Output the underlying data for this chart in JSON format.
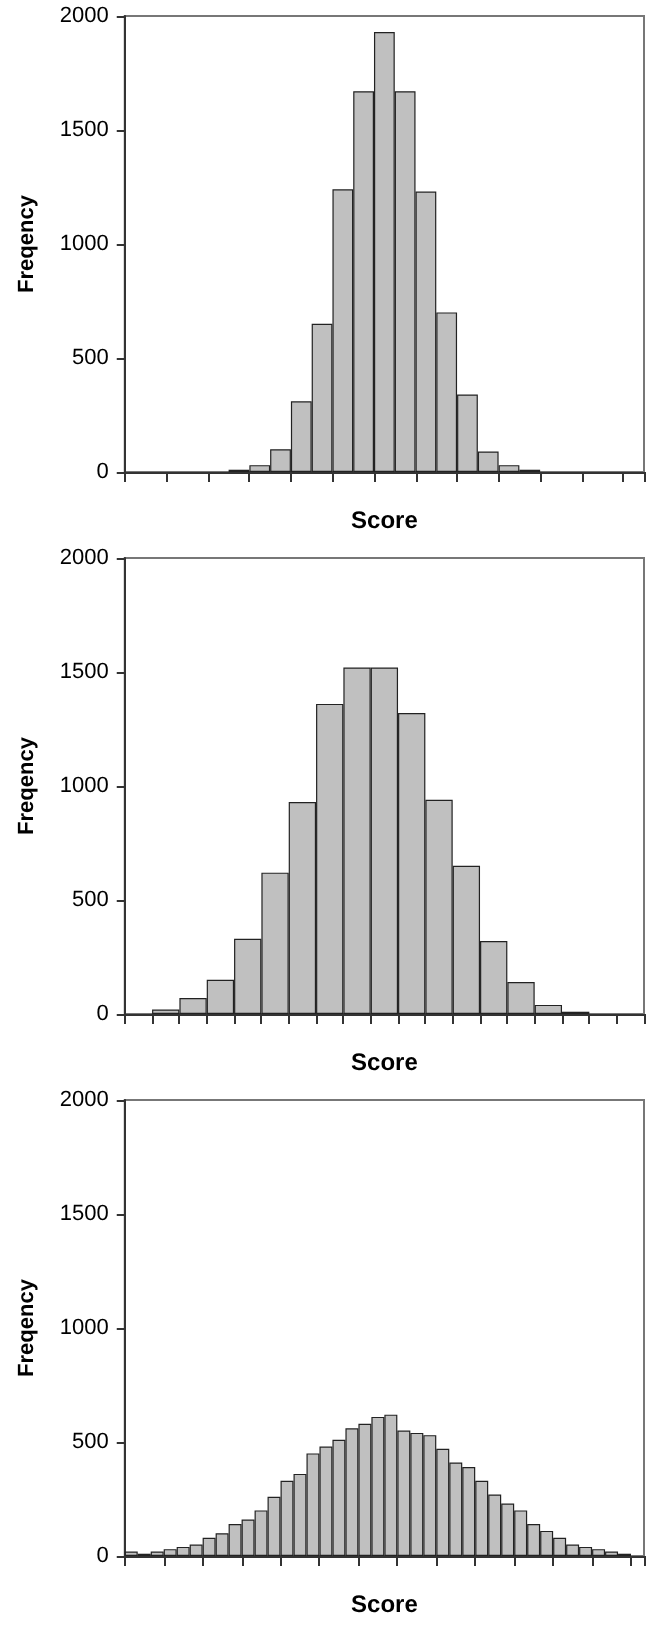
{
  "chart_data": [
    {
      "type": "bar",
      "xlabel": "Score",
      "ylabel": "Freqency",
      "categories": [
        null,
        null,
        null,
        null,
        null,
        null,
        null,
        null,
        null,
        null,
        null,
        null,
        null,
        null,
        null,
        null,
        null,
        null,
        null,
        null,
        null,
        null,
        null,
        null,
        null
      ],
      "values": [
        0,
        0,
        0,
        0,
        0,
        10,
        30,
        100,
        310,
        650,
        1240,
        1670,
        1930,
        1670,
        1230,
        700,
        340,
        90,
        30,
        10,
        0,
        0,
        0,
        0,
        0
      ],
      "color": "#c0c0c0",
      "ylim": [
        0,
        2000
      ],
      "yticks": [
        0,
        500,
        1000,
        1500,
        2000
      ],
      "grid": false,
      "tick_labels": "y"
    },
    {
      "type": "bar",
      "xlabel": "Score",
      "ylabel": "Freqency",
      "categories": [
        null,
        null,
        null,
        null,
        null,
        null,
        null,
        null,
        null,
        null,
        null,
        null,
        null,
        null,
        null,
        null,
        null,
        null,
        null
      ],
      "values": [
        0,
        20,
        70,
        150,
        330,
        620,
        930,
        1360,
        1520,
        1520,
        1320,
        940,
        650,
        320,
        140,
        40,
        10,
        0,
        0
      ],
      "color": "#c0c0c0",
      "ylim": [
        0,
        2000
      ],
      "yticks": [
        0,
        500,
        1000,
        1500,
        2000
      ],
      "grid": false,
      "tick_labels": "y"
    },
    {
      "type": "bar",
      "xlabel": "Score",
      "ylabel": "Freqency",
      "categories": [
        null,
        null,
        null,
        null,
        null,
        null,
        null,
        null,
        null,
        null,
        null,
        null,
        null,
        null,
        null,
        null,
        null,
        null,
        null,
        null,
        null,
        null,
        null,
        null,
        null,
        null,
        null,
        null,
        null,
        null,
        null,
        null,
        null,
        null,
        null,
        null,
        null,
        null,
        null,
        null
      ],
      "values": [
        20,
        10,
        20,
        30,
        40,
        50,
        80,
        100,
        140,
        160,
        200,
        260,
        330,
        360,
        450,
        480,
        510,
        560,
        580,
        610,
        620,
        550,
        540,
        530,
        470,
        410,
        390,
        330,
        270,
        230,
        200,
        140,
        110,
        80,
        50,
        40,
        30,
        20,
        10,
        0
      ],
      "color": "#c0c0c0",
      "ylim": [
        0,
        2000
      ],
      "yticks": [
        0,
        500,
        1000,
        1500,
        2000
      ],
      "grid": false,
      "tick_labels": "y"
    }
  ]
}
